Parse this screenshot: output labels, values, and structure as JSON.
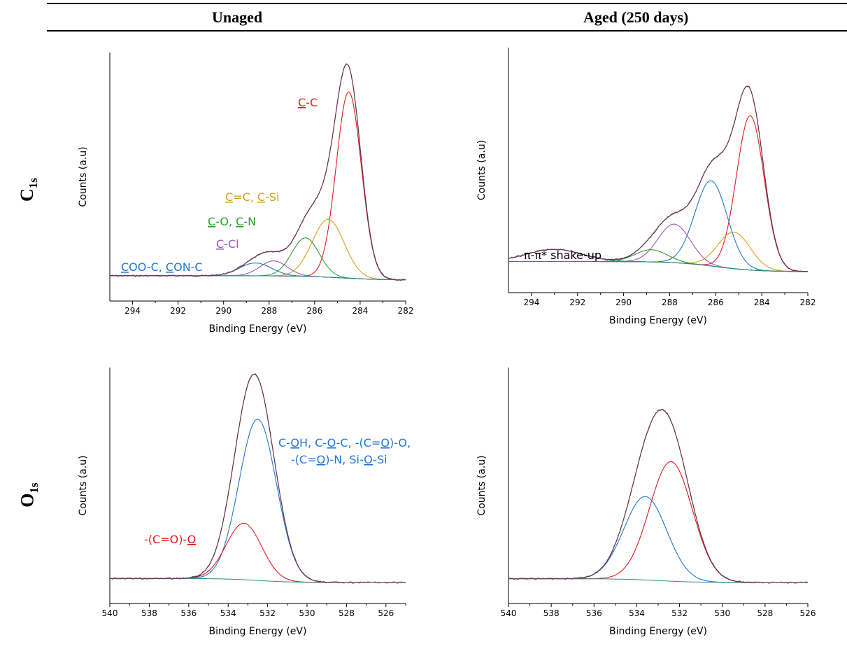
{
  "columns": [
    "Unaged",
    "Aged (250 days)"
  ],
  "rows": [
    {
      "main": "C",
      "sub": "1s"
    },
    {
      "main": "O",
      "sub": "1s"
    }
  ],
  "chart_data": [
    {
      "type": "line",
      "panel": "C1s-unaged",
      "xlabel": "Binding Energy (eV)",
      "ylabel": "Counts (a.u)",
      "xlim": [
        295,
        282
      ],
      "ylim": [
        0,
        1.0
      ],
      "x_ticks": [
        294,
        292,
        290,
        288,
        286,
        284,
        282
      ],
      "series": [
        {
          "color": "#e41a1c",
          "peaks": [
            {
              "center": 284.5,
              "amp": 0.87,
              "sigma": 0.55
            }
          ],
          "name": "C-C"
        },
        {
          "color": "#d4a017",
          "peaks": [
            {
              "center": 285.4,
              "amp": 0.27,
              "sigma": 0.7
            }
          ],
          "name": "C=C, C-Si"
        },
        {
          "color": "#2ca02c",
          "peaks": [
            {
              "center": 286.4,
              "amp": 0.18,
              "sigma": 0.6
            }
          ],
          "name": "C-O, C-N"
        },
        {
          "color": "#9b59b6",
          "peaks": [
            {
              "center": 287.8,
              "amp": 0.07,
              "sigma": 0.6
            }
          ],
          "name": "C-Cl"
        },
        {
          "color": "#1f77d4",
          "peaks": [
            {
              "center": 288.6,
              "amp": 0.06,
              "sigma": 0.7
            }
          ],
          "name": "COO-C, CON-C"
        }
      ],
      "background": {
        "left": 0.02,
        "right": 0.0,
        "step_center": 284.8
      }
    },
    {
      "type": "line",
      "panel": "C1s-aged",
      "xlabel": "Binding Energy (eV)",
      "ylabel": "Counts (a.u)",
      "xlim": [
        295,
        282
      ],
      "ylim": [
        0,
        1.0
      ],
      "x_ticks": [
        294,
        292,
        290,
        288,
        286,
        284,
        282
      ],
      "series": [
        {
          "color": "#e41a1c",
          "peaks": [
            {
              "center": 284.5,
              "amp": 0.76,
              "sigma": 0.6
            }
          ]
        },
        {
          "color": "#d4a017",
          "peaks": [
            {
              "center": 285.2,
              "amp": 0.18,
              "sigma": 0.7
            }
          ]
        },
        {
          "color": "#1f77d4",
          "peaks": [
            {
              "center": 286.2,
              "amp": 0.42,
              "sigma": 0.7
            }
          ]
        },
        {
          "color": "#9b59b6",
          "peaks": [
            {
              "center": 287.8,
              "amp": 0.19,
              "sigma": 0.7
            }
          ]
        },
        {
          "color": "#2ca02c",
          "peaks": [
            {
              "center": 288.8,
              "amp": 0.06,
              "sigma": 0.7
            }
          ]
        },
        {
          "color": "#2e8b7a",
          "peaks": [
            {
              "center": 293.0,
              "amp": 0.06,
              "sigma": 1.2
            }
          ],
          "name": "π-π* shake-up"
        }
      ],
      "background": {
        "left": 0.05,
        "right": 0.0,
        "step_center": 286.0
      }
    },
    {
      "type": "line",
      "panel": "O1s-unaged",
      "xlabel": "Binding Energy (eV)",
      "ylabel": "Counts (a.u)",
      "xlim": [
        540,
        525
      ],
      "ylim": [
        0,
        1.0
      ],
      "x_ticks": [
        540,
        538,
        536,
        534,
        532,
        530,
        528,
        526
      ],
      "series": [
        {
          "color": "#1f77d4",
          "peaks": [
            {
              "center": 532.5,
              "amp": 0.8,
              "sigma": 0.95
            }
          ],
          "name": "C-OH, C-O-C, -(C=O)-O, -(C=O)-N, Si-O-Si"
        },
        {
          "color": "#e41a1c",
          "peaks": [
            {
              "center": 533.2,
              "amp": 0.28,
              "sigma": 0.9
            }
          ],
          "name": "-(C=O)-O"
        }
      ],
      "background": {
        "left": 0.02,
        "right": 0.0,
        "step_center": 532.5
      }
    },
    {
      "type": "line",
      "panel": "O1s-aged",
      "xlabel": "Binding Energy (eV)",
      "ylabel": "Counts (a.u)",
      "xlim": [
        540,
        526
      ],
      "ylim": [
        0,
        1.0
      ],
      "x_ticks": [
        540,
        538,
        536,
        534,
        532,
        530,
        528,
        526
      ],
      "series": [
        {
          "color": "#e41a1c",
          "peaks": [
            {
              "center": 532.4,
              "amp": 0.63,
              "sigma": 1.0
            }
          ]
        },
        {
          "color": "#1f77d4",
          "peaks": [
            {
              "center": 533.6,
              "amp": 0.44,
              "sigma": 1.0
            }
          ]
        }
      ],
      "background": {
        "left": 0.02,
        "right": 0.0,
        "step_center": 533.0
      }
    }
  ]
}
